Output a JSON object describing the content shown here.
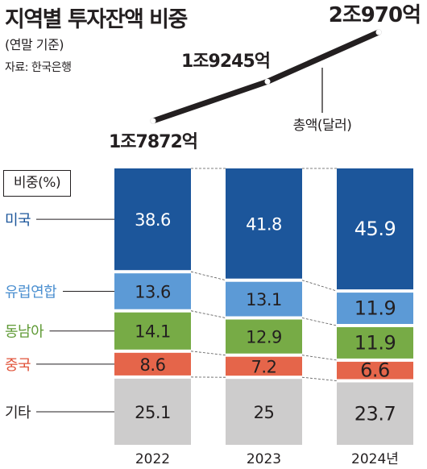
{
  "title": "지역별 투자잔액 비중",
  "subtitle": "(연말 기준)",
  "source": "자료: 한국은행",
  "unit_label": "비중(%)",
  "total_legend": "총액(달러)",
  "chart_data": {
    "type": "bar",
    "stacked": true,
    "categories": [
      "2022",
      "2023",
      "2024년"
    ],
    "totals": [
      "1조7872억",
      "1조9245억",
      "2조970억"
    ],
    "total_values_usd_100m": [
      17872,
      19245,
      20970
    ],
    "series": [
      {
        "name": "미국",
        "values": [
          "38.6",
          "41.8",
          "45.9"
        ],
        "color": "#1c569b",
        "label_color": "#1c569b",
        "text_color": "#ffffff"
      },
      {
        "name": "유럽연합",
        "values": [
          "13.6",
          "13.1",
          "11.9"
        ],
        "color": "#5c9ad6",
        "label_color": "#4b8fd0",
        "text_color": "#231f20"
      },
      {
        "name": "동남아",
        "values": [
          "14.1",
          "12.9",
          "11.9"
        ],
        "color": "#77ab46",
        "label_color": "#5f9a35",
        "text_color": "#231f20"
      },
      {
        "name": "중국",
        "values": [
          "8.6",
          "7.2",
          "6.6"
        ],
        "color": "#e5654a",
        "label_color": "#e0533a",
        "text_color": "#231f20"
      },
      {
        "name": "기타",
        "values": [
          "25.1",
          "25",
          "23.7"
        ],
        "color": "#cdcccc",
        "label_color": "#231f20",
        "text_color": "#231f20"
      }
    ],
    "ylabel": "비중(%)"
  }
}
